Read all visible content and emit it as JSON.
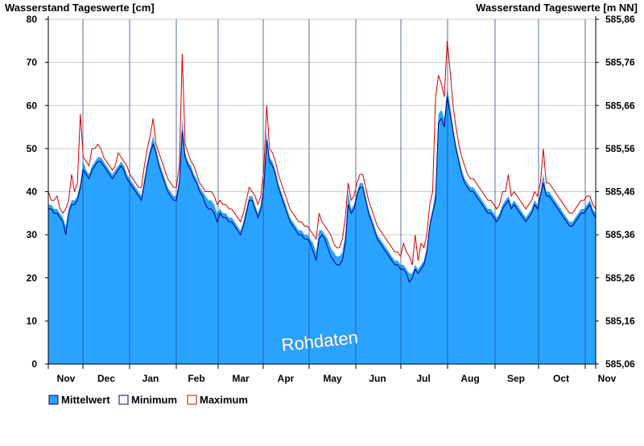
{
  "chart_data": {
    "type": "area",
    "left_axis_title": "Wasserstand Tageswerte [cm]",
    "right_axis_title": "Wasserstand Tageswerte [m NN]",
    "ylim": [
      0,
      80
    ],
    "y_ticks": [
      0,
      10,
      20,
      30,
      40,
      50,
      60,
      70,
      80
    ],
    "right_ticks": [
      "585,06",
      "585,16",
      "585,26",
      "585,36",
      "585,46",
      "585,56",
      "585,66",
      "585,76",
      "585,86"
    ],
    "months": [
      "Nov",
      "Dec",
      "Jan",
      "Feb",
      "Mar",
      "Apr",
      "May",
      "Jun",
      "Jul",
      "Aug",
      "Sep",
      "Oct",
      "Nov"
    ],
    "grid": "horizontal",
    "legend_position": "bottom-left",
    "watermark": "Rohdaten",
    "colors": {
      "mittelwert_fill": "#29a3ff",
      "minimum_line": "#00007a",
      "maximum_line": "#d40000",
      "gridline": "#cccccc"
    },
    "series": [
      {
        "name": "Mittelwert",
        "values": [
          37,
          37,
          36,
          36,
          35,
          34,
          32,
          36,
          38,
          38,
          39,
          42,
          47,
          45,
          44,
          46,
          47,
          48,
          48,
          47,
          46,
          45,
          44,
          45,
          46,
          47,
          46,
          44,
          43,
          42,
          41,
          40,
          39,
          43,
          47,
          50,
          53,
          50,
          47,
          45,
          43,
          41,
          40,
          39,
          39,
          43,
          57,
          49,
          47,
          46,
          44,
          43,
          41,
          40,
          39,
          38,
          38,
          37,
          35,
          36,
          35,
          35,
          34,
          34,
          33,
          32,
          31,
          33,
          36,
          39,
          39,
          37,
          35,
          37,
          42,
          54,
          48,
          47,
          45,
          42,
          40,
          38,
          36,
          34,
          33,
          32,
          31,
          31,
          30,
          30,
          29,
          28,
          26,
          31,
          31,
          30,
          29,
          27,
          26,
          25,
          25,
          26,
          30,
          40,
          36,
          37,
          40,
          42,
          42,
          39,
          36,
          34,
          32,
          30,
          29,
          28,
          27,
          26,
          25,
          24,
          24,
          23,
          23,
          22,
          21,
          21,
          23,
          22,
          23,
          24,
          27,
          33,
          36,
          40,
          58,
          59,
          57,
          64,
          60,
          55,
          51,
          48,
          45,
          43,
          42,
          41,
          41,
          40,
          39,
          38,
          37,
          36,
          36,
          35,
          34,
          35,
          37,
          38,
          39,
          37,
          38,
          37,
          36,
          35,
          34,
          35,
          36,
          38,
          37,
          40,
          44,
          40,
          40,
          39,
          38,
          37,
          36,
          35,
          34,
          33,
          33,
          34,
          35,
          36,
          36,
          37,
          38,
          36,
          35
        ]
      },
      {
        "name": "Minimum",
        "values": [
          36,
          36,
          35,
          35,
          34,
          33,
          30,
          35,
          37,
          37,
          38,
          41,
          45,
          44,
          43,
          45,
          46,
          47,
          47,
          46,
          45,
          44,
          43,
          44,
          45,
          46,
          45,
          43,
          42,
          41,
          40,
          39,
          38,
          42,
          46,
          49,
          51,
          49,
          46,
          44,
          42,
          40,
          39,
          38,
          38,
          42,
          54,
          48,
          46,
          45,
          43,
          42,
          40,
          39,
          37,
          36,
          36,
          35,
          33,
          35,
          34,
          34,
          33,
          33,
          32,
          31,
          30,
          32,
          35,
          38,
          38,
          36,
          34,
          36,
          41,
          52,
          47,
          46,
          44,
          41,
          39,
          37,
          35,
          33,
          32,
          31,
          30,
          30,
          29,
          29,
          28,
          26,
          24,
          29,
          30,
          29,
          27,
          25,
          24,
          23,
          23,
          24,
          28,
          37,
          35,
          36,
          39,
          41,
          41,
          38,
          35,
          33,
          31,
          29,
          28,
          27,
          26,
          25,
          24,
          23,
          23,
          22,
          22,
          21,
          19,
          20,
          22,
          21,
          22,
          23,
          26,
          32,
          35,
          38,
          56,
          57,
          55,
          62,
          58,
          54,
          50,
          47,
          44,
          42,
          41,
          40,
          40,
          39,
          38,
          37,
          36,
          35,
          35,
          34,
          33,
          34,
          36,
          37,
          38,
          36,
          37,
          36,
          35,
          34,
          33,
          34,
          35,
          37,
          36,
          39,
          42,
          39,
          39,
          38,
          37,
          36,
          35,
          34,
          33,
          32,
          32,
          33,
          34,
          35,
          35,
          36,
          37,
          35,
          34
        ]
      },
      {
        "name": "Maximum",
        "values": [
          40,
          38,
          38,
          39,
          36,
          35,
          36,
          38,
          44,
          40,
          42,
          58,
          48,
          47,
          46,
          50,
          50,
          51,
          50,
          48,
          47,
          46,
          45,
          46,
          49,
          48,
          47,
          46,
          44,
          43,
          42,
          41,
          41,
          46,
          50,
          53,
          57,
          51,
          49,
          47,
          45,
          43,
          42,
          41,
          41,
          46,
          72,
          51,
          49,
          47,
          46,
          44,
          42,
          41,
          40,
          40,
          40,
          39,
          37,
          38,
          37,
          37,
          36,
          36,
          35,
          34,
          33,
          35,
          38,
          41,
          40,
          39,
          37,
          39,
          45,
          60,
          50,
          49,
          47,
          44,
          42,
          40,
          38,
          36,
          35,
          34,
          33,
          33,
          32,
          32,
          31,
          30,
          29,
          35,
          33,
          32,
          31,
          30,
          28,
          27,
          27,
          29,
          34,
          42,
          38,
          39,
          42,
          44,
          44,
          41,
          38,
          36,
          34,
          32,
          31,
          30,
          29,
          28,
          27,
          26,
          26,
          25,
          28,
          26,
          25,
          23,
          30,
          24,
          28,
          27,
          30,
          37,
          40,
          62,
          67,
          65,
          62,
          75,
          68,
          60,
          55,
          51,
          48,
          46,
          44,
          43,
          43,
          42,
          41,
          40,
          39,
          38,
          38,
          37,
          36,
          37,
          40,
          40,
          44,
          39,
          40,
          39,
          38,
          37,
          36,
          37,
          38,
          40,
          39,
          42,
          50,
          42,
          42,
          41,
          40,
          39,
          38,
          37,
          36,
          35,
          35,
          36,
          37,
          38,
          38,
          39,
          39,
          37,
          36
        ]
      }
    ]
  }
}
